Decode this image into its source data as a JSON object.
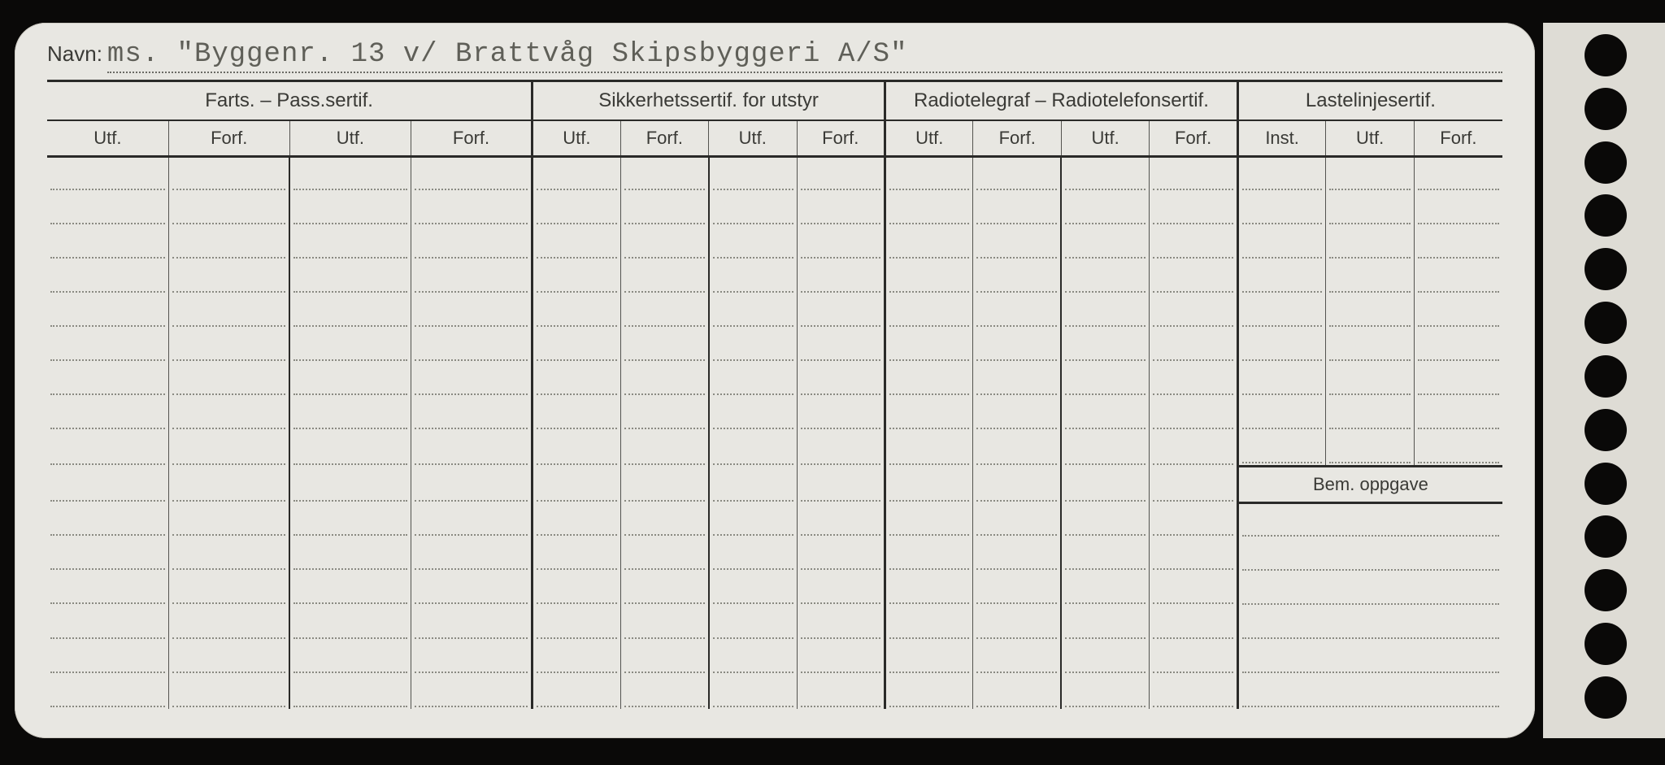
{
  "navn_label": "Navn:",
  "navn_value": "ms. \"Byggenr. 13 v/ Brattvåg Skipsbyggeri A/S\"",
  "groups": [
    {
      "title": "Farts. – Pass.sertif.",
      "cols": [
        "Utf.",
        "Forf.",
        "Utf.",
        "Forf."
      ]
    },
    {
      "title": "Sikkerhetssertif. for utstyr",
      "cols": [
        "Utf.",
        "Forf.",
        "Utf.",
        "Forf."
      ]
    },
    {
      "title": "Radiotelegraf – Radiotelefonsertif.",
      "cols": [
        "Utf.",
        "Forf.",
        "Utf.",
        "Forf."
      ]
    },
    {
      "title": "Lastelinjesertif.",
      "cols": [
        "Inst.",
        "Utf.",
        "Forf."
      ]
    }
  ],
  "bem_label": "Bem. oppgave",
  "body_rows": 16,
  "bem_start_row": 9,
  "col_widths_pct": [
    7.7,
    7.7,
    7.7,
    7.7,
    5.6,
    5.6,
    5.6,
    5.6,
    5.6,
    5.6,
    5.6,
    5.6,
    5.6,
    5.6,
    5.6
  ],
  "colors": {
    "page_bg": "#0a0908",
    "card_bg": "#e8e7e2",
    "line": "#2a2a28",
    "thin_line": "#545450",
    "dot": "#8a8a82",
    "text": "#3a3a36",
    "typed": "#5f5f58"
  },
  "punch_holes": 13
}
